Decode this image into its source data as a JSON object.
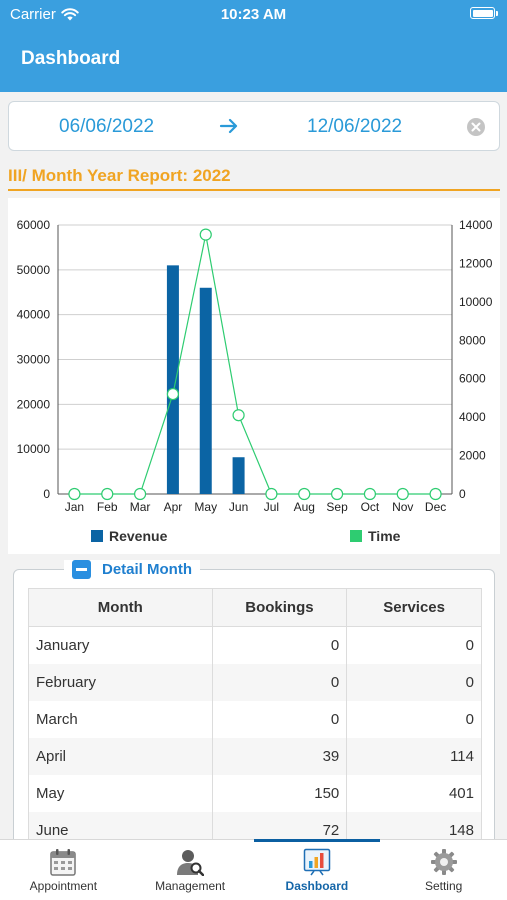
{
  "status_bar": {
    "carrier": "Carrier",
    "time": "10:23 AM"
  },
  "header": {
    "title": "Dashboard"
  },
  "date_range": {
    "from": "06/06/2022",
    "to": "12/06/2022"
  },
  "report": {
    "title": "III/ Month Year Report: 2022"
  },
  "chart_data": {
    "type": "bar",
    "categories": [
      "Jan",
      "Feb",
      "Mar",
      "Apr",
      "May",
      "Jun",
      "Jul",
      "Aug",
      "Sep",
      "Oct",
      "Nov",
      "Dec"
    ],
    "series": [
      {
        "name": "Revenue",
        "type": "bar",
        "axis": "left",
        "color": "#0b64a4",
        "values": [
          0,
          0,
          0,
          51000,
          46000,
          8200,
          0,
          0,
          0,
          0,
          0,
          0
        ]
      },
      {
        "name": "Time",
        "type": "line",
        "axis": "right",
        "color": "#2ecc71",
        "values": [
          0,
          0,
          0,
          5200,
          13500,
          4100,
          0,
          0,
          0,
          0,
          0,
          0
        ]
      }
    ],
    "y_left": {
      "min": 0,
      "max": 60000,
      "ticks": [
        0,
        10000,
        20000,
        30000,
        40000,
        50000,
        60000
      ]
    },
    "y_right": {
      "min": 0,
      "max": 14000,
      "ticks": [
        0,
        2000,
        4000,
        6000,
        8000,
        10000,
        12000,
        14000
      ]
    },
    "grid": true,
    "legend": "bottom"
  },
  "detail": {
    "title": "Detail Month",
    "columns": [
      "Month",
      "Bookings",
      "Services"
    ],
    "rows": [
      {
        "month": "January",
        "bookings": "0",
        "services": "0"
      },
      {
        "month": "February",
        "bookings": "0",
        "services": "0"
      },
      {
        "month": "March",
        "bookings": "0",
        "services": "0"
      },
      {
        "month": "April",
        "bookings": "39",
        "services": "114"
      },
      {
        "month": "May",
        "bookings": "150",
        "services": "401"
      },
      {
        "month": "June",
        "bookings": "72",
        "services": "148"
      }
    ]
  },
  "tabs": [
    {
      "id": "appointment",
      "label": "Appointment",
      "icon": "calendar-icon",
      "active": false
    },
    {
      "id": "management",
      "label": "Management",
      "icon": "user-search-icon",
      "active": false
    },
    {
      "id": "dashboard",
      "label": "Dashboard",
      "icon": "chart-icon",
      "active": true
    },
    {
      "id": "setting",
      "label": "Setting",
      "icon": "gear-icon",
      "active": false
    }
  ],
  "colors": {
    "header": "#3a9fdf",
    "accent": "#f0a422",
    "link": "#2a9ad8",
    "active_tab": "#0b5fa1"
  }
}
